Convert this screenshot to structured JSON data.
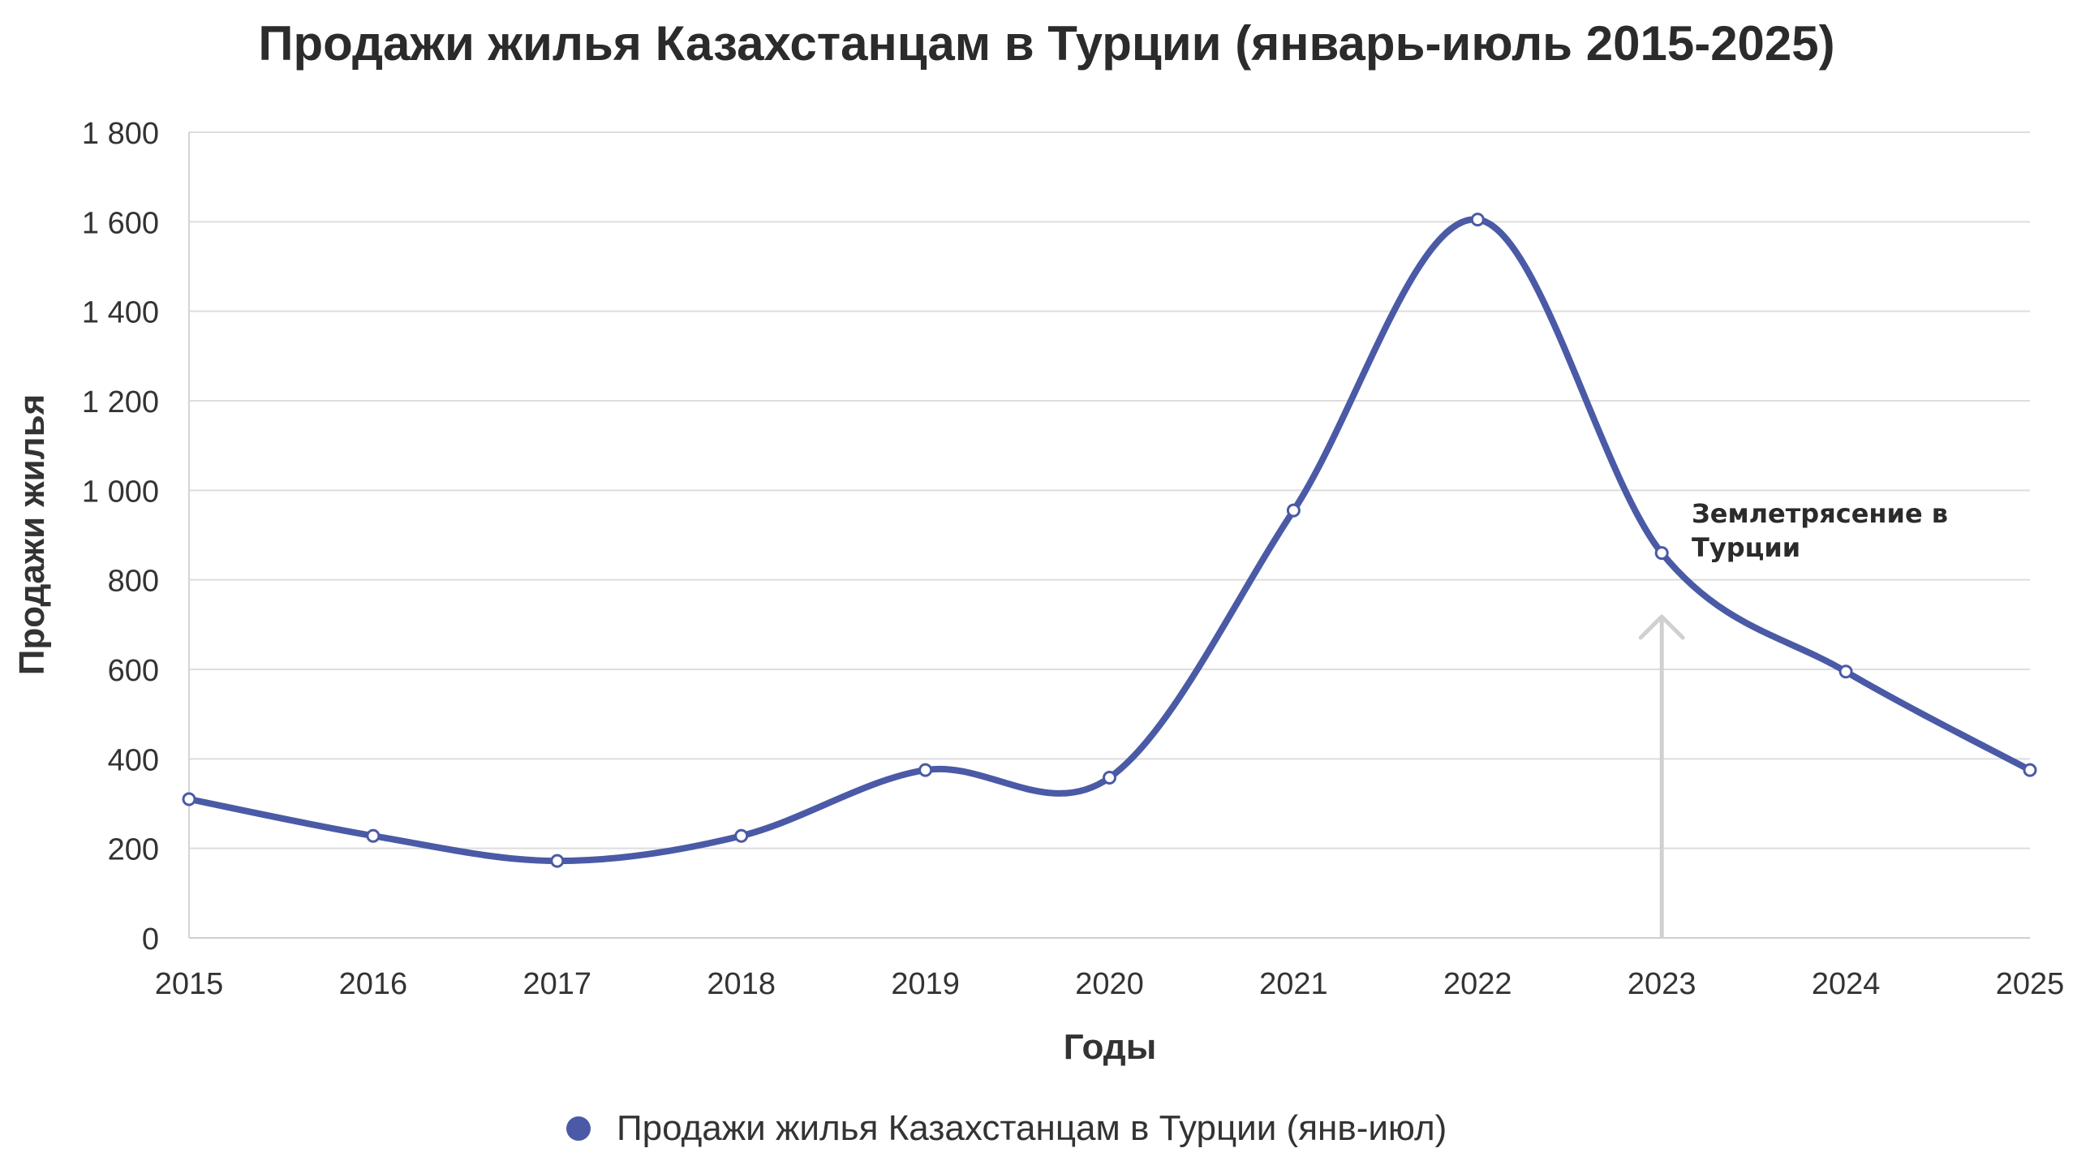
{
  "chart_data": {
    "type": "line",
    "title": "Продажи жилья Казахстанцам в Турции (январь-июль 2015-2025)",
    "xlabel": "Годы",
    "ylabel": "Продажи жилья",
    "x": [
      "2015",
      "2016",
      "2017",
      "2018",
      "2019",
      "2020",
      "2021",
      "2022",
      "2023",
      "2024",
      "2025"
    ],
    "y_ticks": [
      "0",
      "200",
      "400",
      "600",
      "800",
      "1 000",
      "1 200",
      "1 400",
      "1 600",
      "1 800"
    ],
    "ylim": [
      0,
      1800
    ],
    "grid": true,
    "smooth": true,
    "series": [
      {
        "name": "Продажи жилья Казахстанцам в Турции (янв-июл)",
        "color": "#4a5aa6",
        "values": [
          310,
          228,
          172,
          228,
          375,
          358,
          955,
          1605,
          860,
          595,
          375
        ]
      }
    ],
    "annotation": {
      "text_lines": [
        "Землетрясение в",
        "Турции"
      ],
      "x": "2023",
      "arrow_color": "#d0d0d0"
    },
    "legend": {
      "position": "bottom-center",
      "label": "Продажи жилья Казахстанцам в Турции (янв-июл)"
    }
  }
}
